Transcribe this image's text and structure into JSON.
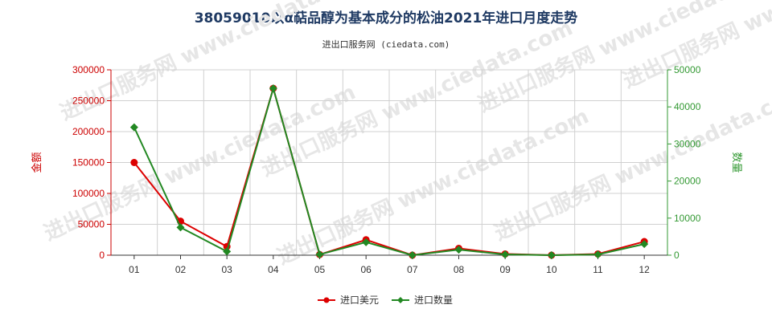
{
  "chart_data": {
    "type": "line",
    "title": "38059010以α萜品醇为基本成分的松油2021年进口月度走势",
    "subtitle": "进出口服务网 (ciedata.com)",
    "watermark": "进出口服务网 www.ciedata.com",
    "categories": [
      "01",
      "02",
      "03",
      "04",
      "05",
      "06",
      "07",
      "08",
      "09",
      "10",
      "11",
      "12"
    ],
    "y_left": {
      "label": "金额",
      "min": 0,
      "max": 300000,
      "ticks": [
        0,
        50000,
        100000,
        150000,
        200000,
        250000,
        300000
      ],
      "color": "#cc0000"
    },
    "y_right": {
      "label": "数量",
      "min": 0,
      "max": 50000,
      "ticks": [
        0,
        10000,
        20000,
        30000,
        40000,
        50000
      ],
      "color": "#339933"
    },
    "grid": true,
    "legend_position": "bottom",
    "series": [
      {
        "name": "进口美元",
        "axis": "left",
        "color": "#dd0000",
        "marker": "circle",
        "values": [
          150000,
          55000,
          14000,
          270000,
          1000,
          25000,
          0,
          11000,
          2000,
          0,
          2000,
          22000
        ]
      },
      {
        "name": "进口数量",
        "axis": "right",
        "color": "#228822",
        "marker": "diamond",
        "values": [
          34500,
          7500,
          1000,
          45000,
          200,
          3500,
          0,
          1500,
          200,
          0,
          200,
          3000
        ]
      }
    ]
  }
}
